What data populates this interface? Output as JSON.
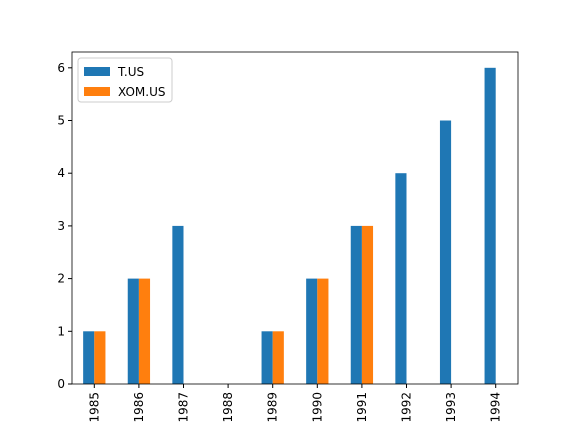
{
  "chart_data": {
    "type": "bar",
    "categories": [
      "1985",
      "1986",
      "1987",
      "1988",
      "1989",
      "1990",
      "1991",
      "1992",
      "1993",
      "1994"
    ],
    "series": [
      {
        "name": "T.US",
        "color": "#1f77b4",
        "values": [
          1,
          2,
          3,
          0,
          1,
          2,
          3,
          4,
          5,
          6
        ]
      },
      {
        "name": "XOM.US",
        "color": "#ff7f0e",
        "values": [
          1,
          2,
          0,
          0,
          1,
          2,
          3,
          0,
          0,
          0
        ]
      }
    ],
    "ylim": [
      0,
      6.3
    ],
    "yticks": [
      0,
      1,
      2,
      3,
      4,
      5,
      6
    ],
    "grid": false,
    "legend": "upper left"
  }
}
